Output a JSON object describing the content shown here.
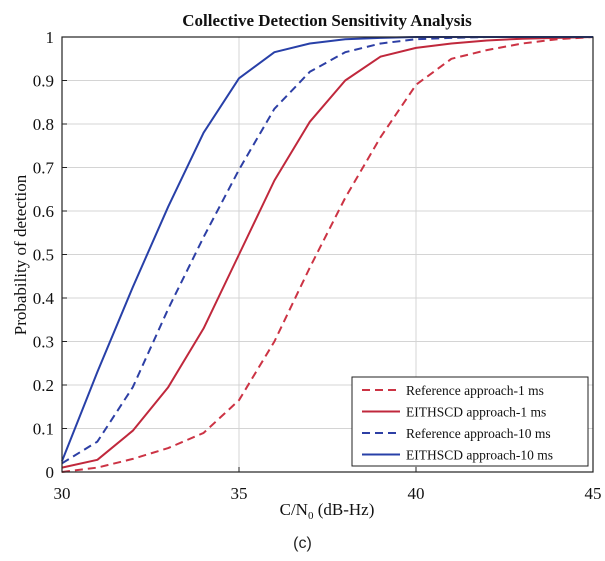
{
  "chart_data": {
    "type": "line",
    "title": "Collective Detection Sensitivity Analysis",
    "xlabel": {
      "main": "C/N",
      "sub": "0",
      "unit": " (dB-Hz)"
    },
    "ylabel": "Probability of detection",
    "xlim": [
      30,
      45
    ],
    "ylim": [
      0,
      1
    ],
    "xticks": [
      30,
      35,
      40,
      45
    ],
    "yticks": [
      0,
      0.1,
      0.2,
      0.3,
      0.4,
      0.5,
      0.6,
      0.7,
      0.8,
      0.9,
      1
    ],
    "grid": true,
    "legend_position": "bottom-right",
    "series": [
      {
        "name": "Reference approach-1 ms",
        "color": "#cc3344",
        "dash": true,
        "x": [
          30,
          31,
          32,
          33,
          34,
          35,
          36,
          37,
          38,
          39,
          40,
          41,
          42,
          43,
          44,
          45
        ],
        "y": [
          0.0,
          0.01,
          0.03,
          0.055,
          0.09,
          0.165,
          0.3,
          0.47,
          0.63,
          0.77,
          0.89,
          0.95,
          0.97,
          0.985,
          0.995,
          1.0
        ]
      },
      {
        "name": "EITHSCD approach-1 ms",
        "color": "#c0283c",
        "dash": false,
        "x": [
          30,
          31,
          32,
          33,
          34,
          35,
          36,
          37,
          38,
          39,
          40,
          41,
          42,
          43,
          44,
          45
        ],
        "y": [
          0.01,
          0.028,
          0.095,
          0.195,
          0.33,
          0.5,
          0.67,
          0.805,
          0.9,
          0.955,
          0.975,
          0.985,
          0.992,
          0.996,
          0.998,
          1.0
        ]
      },
      {
        "name": "Reference approach-10 ms",
        "color": "#2d3fa5",
        "dash": true,
        "x": [
          30,
          31,
          32,
          33,
          34,
          35,
          36,
          37,
          38,
          39,
          40,
          41,
          42,
          43,
          44,
          45
        ],
        "y": [
          0.02,
          0.07,
          0.195,
          0.375,
          0.54,
          0.695,
          0.835,
          0.92,
          0.965,
          0.985,
          0.995,
          0.998,
          1.0,
          1.0,
          1.0,
          1.0
        ]
      },
      {
        "name": "EITHSCD approach-10 ms",
        "color": "#2840a8",
        "dash": false,
        "x": [
          30,
          31,
          32,
          33,
          34,
          35,
          36,
          37,
          38,
          39,
          40,
          41,
          42,
          43,
          44,
          45
        ],
        "y": [
          0.025,
          0.23,
          0.425,
          0.61,
          0.78,
          0.905,
          0.965,
          0.985,
          0.995,
          0.998,
          1.0,
          1.0,
          1.0,
          1.0,
          1.0,
          1.0
        ]
      }
    ]
  },
  "caption": "(c)"
}
